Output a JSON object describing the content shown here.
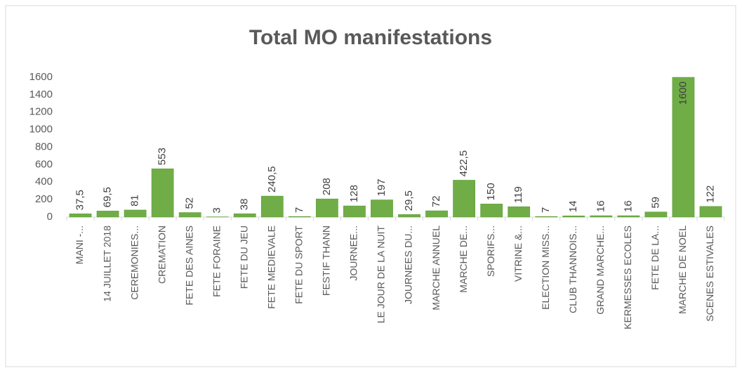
{
  "chart_data": {
    "type": "bar",
    "title": "Total MO manifestations",
    "categories": [
      "MANI -...",
      "14 JUILLET 2018",
      "CEREMONIES...",
      "CREMATION",
      "FETE DES AINES",
      "FETE FORAINE",
      "FETE DU JEU",
      "FETE MEDIEVALE",
      "FETE DU SPORT",
      "FESTIF THANN",
      "JOURNEE...",
      "LE JOUR DE LA NUIT",
      "JOURNEES DU...",
      "MARCHE ANNUEL",
      "MARCHE DE...",
      "SPORIFS...",
      "VITRINE &...",
      "ELECTION MISS...",
      "CLUB THANNOIS...",
      "GRAND MARCHE...",
      "KERMESSES ECOLES",
      "FETE DE LA...",
      "MARCHE DE NOEL",
      "SCENES ESTIVALES"
    ],
    "values": [
      37.5,
      69.5,
      81,
      553,
      52,
      3,
      38,
      240.5,
      7,
      208,
      128,
      197,
      29.5,
      72,
      422.5,
      150,
      119,
      7,
      14,
      16,
      16,
      59,
      1600,
      122
    ],
    "value_labels": [
      "37,5",
      "69,5",
      "81",
      "553",
      "52",
      "3",
      "38",
      "240,5",
      "7",
      "208",
      "128",
      "197",
      "29,5",
      "72",
      "422,5",
      "150",
      "119",
      "7",
      "14",
      "16",
      "16",
      "59",
      "1600",
      "122"
    ],
    "color": "#70ad47",
    "ylim": [
      0,
      1600
    ],
    "yticks": [
      0,
      200,
      400,
      600,
      800,
      1000,
      1200,
      1400,
      1600
    ],
    "grid": false
  }
}
